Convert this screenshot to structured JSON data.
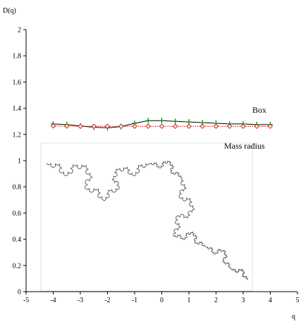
{
  "chart_data": {
    "type": "line",
    "ylabel": "D(q)",
    "xlabel": "q",
    "xlim": [
      -5,
      5
    ],
    "ylim": [
      0,
      2
    ],
    "xticks": [
      -5,
      -4,
      -3,
      -2,
      -1,
      0,
      1,
      2,
      3,
      4,
      5
    ],
    "yticks": [
      0,
      0.2,
      0.4,
      0.6,
      0.8,
      1,
      1.2,
      1.4,
      1.6,
      1.8,
      2
    ],
    "grid": false,
    "annotations": [
      {
        "text": "Box",
        "series": "box"
      },
      {
        "text": "Mass radius",
        "series": "mass_radius"
      }
    ],
    "inset": "Koch curve fractal (decorative image)",
    "series": [
      {
        "key": "box",
        "name": "Box",
        "color": "#000000",
        "marker": "plus",
        "marker_color": "#008000",
        "line_style": "solid",
        "x": [
          -4,
          -3.5,
          -3,
          -2.5,
          -2,
          -1.5,
          -1,
          -0.5,
          0,
          0.5,
          1,
          1.5,
          2,
          2.5,
          3,
          3.5,
          4
        ],
        "y": [
          1.28,
          1.275,
          1.265,
          1.255,
          1.25,
          1.26,
          1.285,
          1.305,
          1.305,
          1.3,
          1.295,
          1.29,
          1.285,
          1.28,
          1.28,
          1.275,
          1.275
        ]
      },
      {
        "key": "mass_radius",
        "name": "Mass radius",
        "color": "#d00000",
        "marker": "diamond-open",
        "marker_color": "#d00000",
        "line_style": "dotted",
        "x": [
          -4,
          -3.5,
          -3,
          -2.5,
          -2,
          -1.5,
          -1,
          -0.5,
          0,
          0.5,
          1,
          1.5,
          2,
          2.5,
          3,
          3.5,
          4
        ],
        "y": [
          1.265,
          1.263,
          1.262,
          1.262,
          1.262,
          1.262,
          1.262,
          1.262,
          1.262,
          1.262,
          1.262,
          1.262,
          1.262,
          1.262,
          1.262,
          1.262,
          1.262
        ]
      }
    ]
  }
}
